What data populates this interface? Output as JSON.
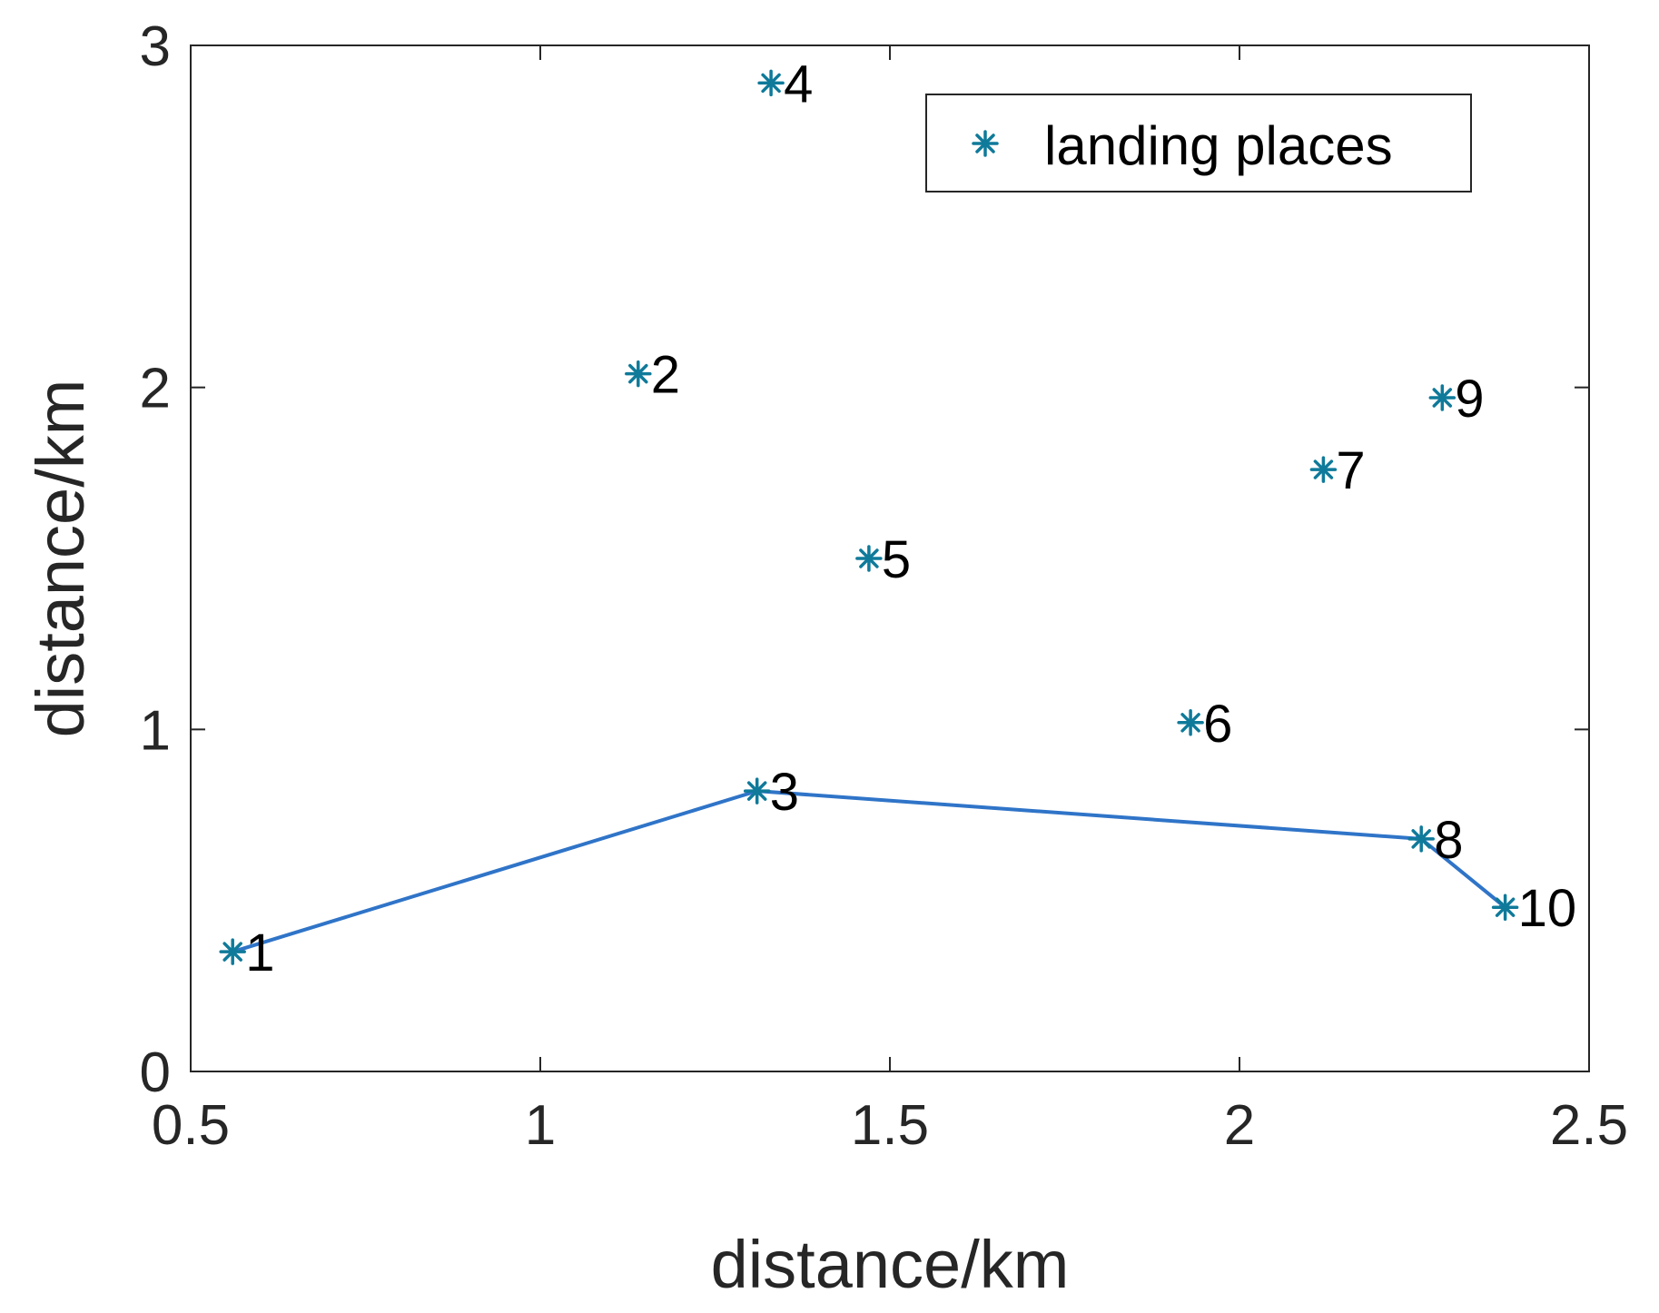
{
  "chart_data": {
    "type": "scatter",
    "xlabel": "distance/km",
    "ylabel": "distance/km",
    "xlim": [
      0.5,
      2.5
    ],
    "ylim": [
      0,
      3
    ],
    "xticks": [
      "0.5",
      "1",
      "1.5",
      "2",
      "2.5"
    ],
    "xtick_values": [
      0.5,
      1,
      1.5,
      2,
      2.5
    ],
    "yticks": [
      "0",
      "1",
      "2",
      "3"
    ],
    "ytick_values": [
      0,
      1,
      2,
      3
    ],
    "grid": false,
    "legend": {
      "position": "top-right",
      "entries": [
        "landing places"
      ]
    },
    "series": [
      {
        "name": "landing places",
        "marker": "asterisk",
        "color": "#0f7a9a",
        "points": [
          {
            "label": "1",
            "x": 0.56,
            "y": 0.35
          },
          {
            "label": "2",
            "x": 1.14,
            "y": 2.04
          },
          {
            "label": "3",
            "x": 1.31,
            "y": 0.82
          },
          {
            "label": "4",
            "x": 1.33,
            "y": 2.89
          },
          {
            "label": "5",
            "x": 1.47,
            "y": 1.5
          },
          {
            "label": "6",
            "x": 1.93,
            "y": 1.02
          },
          {
            "label": "7",
            "x": 2.12,
            "y": 1.76
          },
          {
            "label": "8",
            "x": 2.26,
            "y": 0.68
          },
          {
            "label": "9",
            "x": 2.29,
            "y": 1.97
          },
          {
            "label": "10",
            "x": 2.38,
            "y": 0.48
          }
        ]
      }
    ],
    "route": {
      "color": "#2f74c8",
      "sequence": [
        "1",
        "3",
        "8",
        "10"
      ]
    }
  }
}
